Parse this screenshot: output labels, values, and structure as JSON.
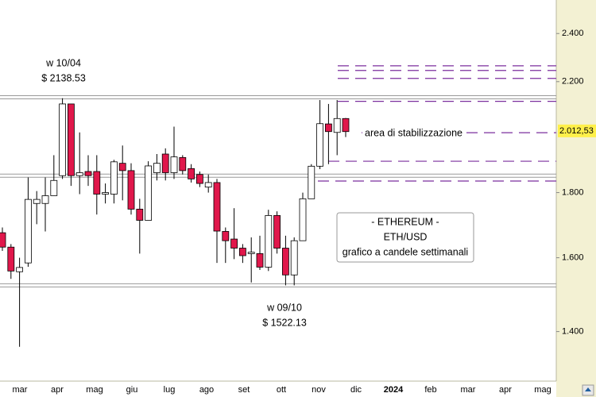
{
  "chart_data": {
    "type": "candlestick",
    "log_scale": true,
    "ylim": [
      1280,
      2550
    ],
    "yticks": [
      {
        "value": 1400,
        "label": "1.400"
      },
      {
        "value": 1600,
        "label": "1.600"
      },
      {
        "value": 1800,
        "label": "1.800"
      },
      {
        "value": 2200,
        "label": "2.200"
      },
      {
        "value": 2400,
        "label": "2.400"
      }
    ],
    "x_labels": [
      "mar",
      "apr",
      "mag",
      "giu",
      "lug",
      "ago",
      "set",
      "ott",
      "nov",
      "dic",
      "2024",
      "feb",
      "mar",
      "apr",
      "mag"
    ],
    "up_color": "#ffffff",
    "down_color": "#e0174b",
    "candles": {
      "open": [
        1674,
        1631,
        1560,
        1585,
        1765,
        1765,
        1790,
        1856,
        2113,
        1856,
        1870,
        1870,
        1795,
        1795,
        1898,
        1873,
        1747,
        1712,
        1866,
        1930,
        1866,
        1918,
        1880,
        1860,
        1818,
        1833,
        1678,
        1655,
        1628,
        1612,
        1612,
        1573,
        1727,
        1628,
        1551,
        1650,
        1780,
        1888,
        2038,
        2007,
        2058
      ],
      "high": [
        1690,
        1640,
        1600,
        1850,
        1805,
        1850,
        1926,
        2135,
        2113,
        2007,
        1926,
        1926,
        1830,
        1910,
        1960,
        1898,
        1780,
        1905,
        1930,
        1950,
        2028,
        1926,
        1895,
        1870,
        1860,
        1845,
        1690,
        1750,
        1640,
        1660,
        1665,
        1745,
        1740,
        1665,
        1660,
        1800,
        1895,
        2128,
        2113,
        2128,
        2060
      ],
      "low": [
        1620,
        1540,
        1362,
        1574,
        1700,
        1678,
        1790,
        1845,
        1822,
        1795,
        1822,
        1730,
        1765,
        1765,
        1775,
        1730,
        1612,
        1712,
        1840,
        1840,
        1845,
        1860,
        1833,
        1818,
        1800,
        1585,
        1585,
        1596,
        1585,
        1530,
        1565,
        1562,
        1612,
        1522,
        1522,
        1650,
        1786,
        1878,
        1895,
        1926,
        1990
      ],
      "close": [
        1631,
        1562,
        1572,
        1778,
        1778,
        1790,
        1840,
        2113,
        1856,
        1866,
        1856,
        1795,
        1800,
        1903,
        1873,
        1747,
        1712,
        1889,
        1898,
        1866,
        1920,
        1873,
        1845,
        1830,
        1833,
        1679,
        1650,
        1628,
        1606,
        1616,
        1573,
        1727,
        1628,
        1551,
        1650,
        1780,
        1888,
        2039,
        2010,
        2058,
        2010
      ]
    },
    "support_lines": [
      2138.53,
      1856,
      1522.13
    ],
    "levels": [
      2264,
      2245,
      2213,
      2123,
      2006,
      1905,
      1838
    ],
    "level_color": "#7b2f9e",
    "price_label": {
      "value": 2012.53,
      "label": "2.012,53"
    },
    "annotations": {
      "high_date": "w 10/04",
      "high_price": "$ 2138.53",
      "low_date": "w 09/10",
      "low_price": "$ 1522.13",
      "zone": "area di stabilizzazione"
    },
    "info_box": [
      "- ETHEREUM -",
      "ETH/USD",
      "grafico a candele settimanali"
    ]
  }
}
